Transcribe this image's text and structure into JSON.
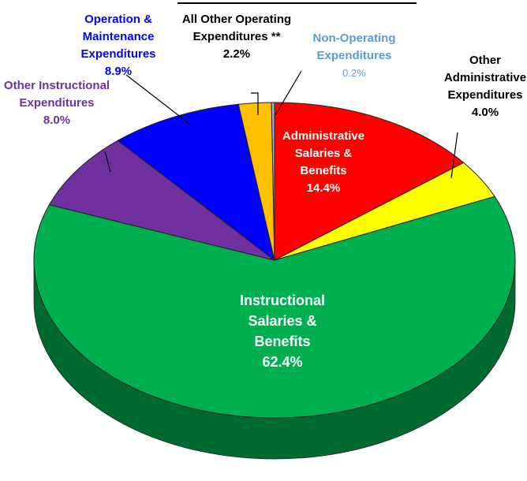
{
  "chart_data": {
    "type": "pie",
    "categories": [
      "Administrative Salaries & Benefits",
      "Other Administrative Expenditures",
      "Instructional Salaries & Benefits",
      "Other Instructional Expenditures",
      "Operation & Maintenance Expenditures",
      "All Other Operating Expenditures **",
      "Non-Operating Expenditures"
    ],
    "values": [
      14.4,
      4.0,
      62.4,
      8.0,
      8.9,
      2.2,
      0.2
    ],
    "value_labels": [
      "14.4%",
      "4.0%",
      "62.4%",
      "8.0%",
      "8.9%",
      "2.2%",
      "0.2%"
    ],
    "colors": [
      "#ff0000",
      "#ffff00",
      "#00b050",
      "#7030a0",
      "#0000ff",
      "#ffc000",
      "#8eb4e3"
    ],
    "label_colors": [
      "#ffffff",
      "#000000",
      "#ffffff",
      "#7030a0",
      "#0000ff",
      "#000000",
      "#5b9bd5"
    ]
  }
}
